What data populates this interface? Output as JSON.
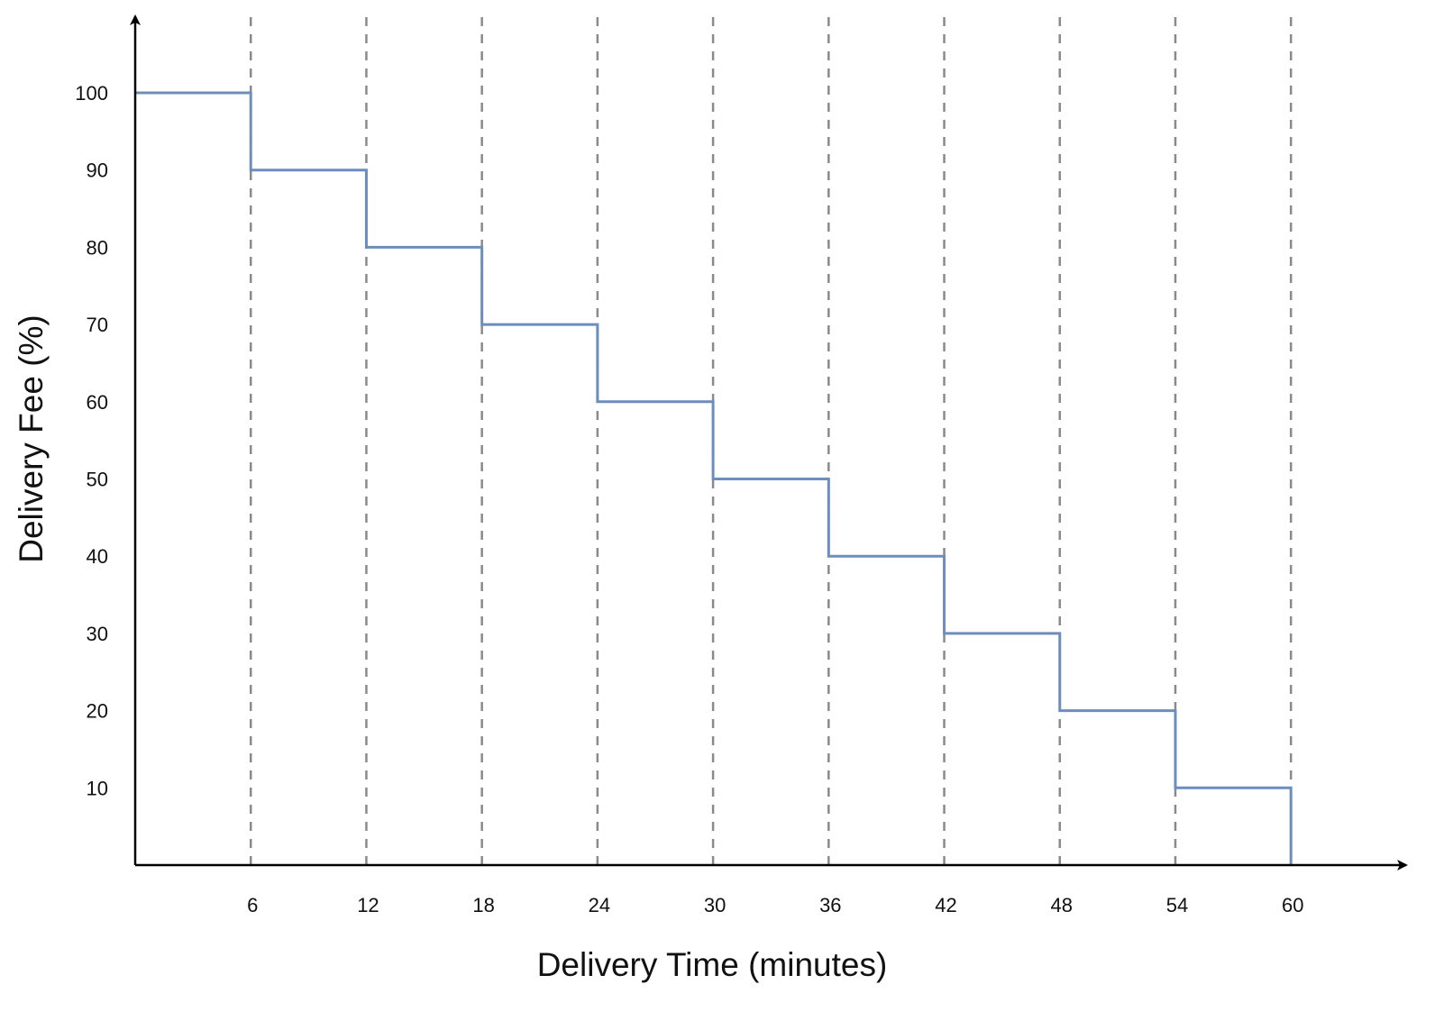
{
  "chart_data": {
    "type": "line",
    "step": "post",
    "title": "",
    "xlabel": "Delivery Time (minutes)",
    "ylabel": "Delivery Fee (%)",
    "xlim": [
      0,
      66
    ],
    "ylim": [
      0,
      110
    ],
    "x_ticks": [
      6,
      12,
      18,
      24,
      30,
      36,
      42,
      48,
      54,
      60
    ],
    "y_ticks": [
      10,
      20,
      30,
      40,
      50,
      60,
      70,
      80,
      90,
      100
    ],
    "grid": {
      "vertical": true,
      "horizontal": false,
      "style": "dashed",
      "color": "#8a8a8a"
    },
    "axes": {
      "arrows": true,
      "color": "#000000"
    },
    "series": [
      {
        "color": "#6c8ebf",
        "x": [
          0,
          6,
          12,
          18,
          24,
          30,
          36,
          42,
          48,
          54,
          60
        ],
        "y": [
          100,
          90,
          80,
          70,
          60,
          50,
          40,
          30,
          20,
          10,
          0
        ]
      }
    ]
  }
}
